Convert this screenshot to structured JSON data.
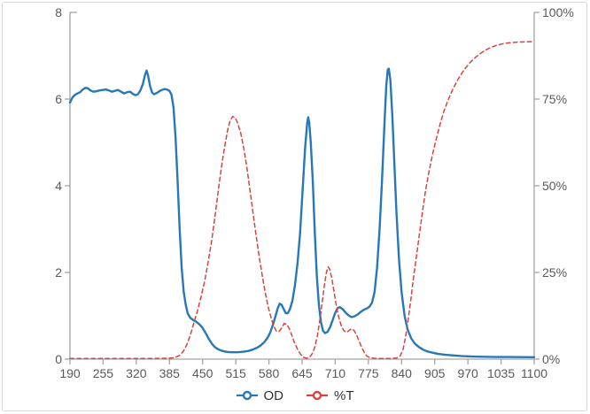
{
  "style": {
    "background": "#ffffff",
    "frame_border": "#d7d7d7",
    "axis_color": "#a3a3a3",
    "tick_label_color": "#595959",
    "legend_text_color": "#303030",
    "od_color": "#2878b8",
    "t_color": "#d8423f"
  },
  "chart_data": {
    "type": "line",
    "grid": false,
    "legend_position": "bottom",
    "x_axis": {
      "min": 190,
      "max": 1100,
      "ticks": [
        190,
        255,
        320,
        385,
        450,
        515,
        580,
        645,
        710,
        775,
        840,
        905,
        970,
        1035,
        1100
      ],
      "tick_labels": [
        "190",
        "255",
        "320",
        "385",
        "450",
        "515",
        "580",
        "645",
        "710",
        "775",
        "840",
        "905",
        "970",
        "1035",
        "1100"
      ]
    },
    "y_axis_left": {
      "label": "OD",
      "min": 0,
      "max": 8,
      "ticks": [
        0,
        2,
        4,
        6,
        8
      ],
      "tick_labels": [
        "0",
        "2",
        "4",
        "6",
        "8"
      ]
    },
    "y_axis_right": {
      "label": "%T",
      "min": 0,
      "max": 100,
      "ticks": [
        0,
        25,
        50,
        75,
        100
      ],
      "tick_labels": [
        "0%",
        "25%",
        "50%",
        "75%",
        "100%"
      ]
    },
    "series": [
      {
        "name": "OD",
        "axis": "left",
        "color": "#2878b8",
        "line_style": "solid",
        "line_width": 2.4,
        "points": [
          [
            190,
            5.92
          ],
          [
            195,
            6.04
          ],
          [
            200,
            6.1
          ],
          [
            205,
            6.13
          ],
          [
            210,
            6.16
          ],
          [
            215,
            6.22
          ],
          [
            220,
            6.26
          ],
          [
            225,
            6.25
          ],
          [
            230,
            6.2
          ],
          [
            236,
            6.17
          ],
          [
            242,
            6.18
          ],
          [
            248,
            6.2
          ],
          [
            254,
            6.21
          ],
          [
            260,
            6.22
          ],
          [
            266,
            6.2
          ],
          [
            272,
            6.17
          ],
          [
            278,
            6.19
          ],
          [
            284,
            6.21
          ],
          [
            290,
            6.17
          ],
          [
            296,
            6.13
          ],
          [
            302,
            6.16
          ],
          [
            308,
            6.17
          ],
          [
            313,
            6.12
          ],
          [
            318,
            6.09
          ],
          [
            323,
            6.11
          ],
          [
            328,
            6.2
          ],
          [
            333,
            6.35
          ],
          [
            337,
            6.55
          ],
          [
            340,
            6.66
          ],
          [
            343,
            6.55
          ],
          [
            347,
            6.3
          ],
          [
            351,
            6.15
          ],
          [
            355,
            6.11
          ],
          [
            360,
            6.14
          ],
          [
            365,
            6.18
          ],
          [
            370,
            6.21
          ],
          [
            375,
            6.23
          ],
          [
            380,
            6.22
          ],
          [
            385,
            6.19
          ],
          [
            389,
            6.1
          ],
          [
            393,
            5.8
          ],
          [
            397,
            5.1
          ],
          [
            401,
            4.1
          ],
          [
            405,
            3.0
          ],
          [
            409,
            2.1
          ],
          [
            413,
            1.55
          ],
          [
            417,
            1.25
          ],
          [
            421,
            1.05
          ],
          [
            426,
            0.95
          ],
          [
            432,
            0.9
          ],
          [
            438,
            0.86
          ],
          [
            444,
            0.8
          ],
          [
            450,
            0.72
          ],
          [
            456,
            0.6
          ],
          [
            462,
            0.47
          ],
          [
            468,
            0.36
          ],
          [
            474,
            0.28
          ],
          [
            480,
            0.23
          ],
          [
            486,
            0.2
          ],
          [
            492,
            0.18
          ],
          [
            500,
            0.165
          ],
          [
            508,
            0.16
          ],
          [
            516,
            0.16
          ],
          [
            524,
            0.165
          ],
          [
            532,
            0.175
          ],
          [
            540,
            0.19
          ],
          [
            548,
            0.22
          ],
          [
            556,
            0.26
          ],
          [
            563,
            0.31
          ],
          [
            570,
            0.38
          ],
          [
            576,
            0.47
          ],
          [
            582,
            0.6
          ],
          [
            588,
            0.8
          ],
          [
            593,
            1.0
          ],
          [
            597,
            1.17
          ],
          [
            601,
            1.28
          ],
          [
            605,
            1.25
          ],
          [
            609,
            1.15
          ],
          [
            613,
            1.06
          ],
          [
            617,
            1.06
          ],
          [
            621,
            1.15
          ],
          [
            626,
            1.35
          ],
          [
            631,
            1.7
          ],
          [
            636,
            2.2
          ],
          [
            641,
            2.9
          ],
          [
            646,
            3.9
          ],
          [
            651,
            4.9
          ],
          [
            655,
            5.45
          ],
          [
            657,
            5.58
          ],
          [
            659,
            5.45
          ],
          [
            662,
            5.0
          ],
          [
            666,
            4.1
          ],
          [
            670,
            2.9
          ],
          [
            674,
            1.9
          ],
          [
            678,
            1.25
          ],
          [
            682,
            0.85
          ],
          [
            686,
            0.66
          ],
          [
            690,
            0.6
          ],
          [
            695,
            0.63
          ],
          [
            700,
            0.74
          ],
          [
            705,
            0.9
          ],
          [
            710,
            1.07
          ],
          [
            715,
            1.18
          ],
          [
            719,
            1.2
          ],
          [
            724,
            1.16
          ],
          [
            730,
            1.08
          ],
          [
            736,
            1.01
          ],
          [
            742,
            0.97
          ],
          [
            748,
            0.99
          ],
          [
            754,
            1.03
          ],
          [
            760,
            1.09
          ],
          [
            766,
            1.14
          ],
          [
            772,
            1.17
          ],
          [
            777,
            1.21
          ],
          [
            782,
            1.3
          ],
          [
            787,
            1.55
          ],
          [
            792,
            2.1
          ],
          [
            797,
            3.0
          ],
          [
            802,
            4.2
          ],
          [
            806,
            5.3
          ],
          [
            810,
            6.3
          ],
          [
            813,
            6.68
          ],
          [
            815,
            6.7
          ],
          [
            818,
            6.45
          ],
          [
            822,
            5.6
          ],
          [
            826,
            4.5
          ],
          [
            830,
            3.4
          ],
          [
            835,
            2.3
          ],
          [
            840,
            1.55
          ],
          [
            846,
            1.0
          ],
          [
            852,
            0.68
          ],
          [
            859,
            0.48
          ],
          [
            866,
            0.36
          ],
          [
            874,
            0.28
          ],
          [
            882,
            0.22
          ],
          [
            890,
            0.18
          ],
          [
            900,
            0.15
          ],
          [
            912,
            0.12
          ],
          [
            926,
            0.1
          ],
          [
            942,
            0.085
          ],
          [
            960,
            0.07
          ],
          [
            980,
            0.06
          ],
          [
            1000,
            0.055
          ],
          [
            1025,
            0.05
          ],
          [
            1050,
            0.05
          ],
          [
            1075,
            0.047
          ],
          [
            1100,
            0.045
          ]
        ]
      },
      {
        "name": "%T",
        "axis": "right",
        "color": "#d8423f",
        "line_style": "dashed",
        "line_width": 1.5,
        "points": [
          [
            190,
            0.2
          ],
          [
            230,
            0.2
          ],
          [
            270,
            0.2
          ],
          [
            310,
            0.2
          ],
          [
            350,
            0.2
          ],
          [
            380,
            0.25
          ],
          [
            395,
            0.4
          ],
          [
            404,
            1.0
          ],
          [
            412,
            2.2
          ],
          [
            419,
            4.2
          ],
          [
            426,
            7
          ],
          [
            433,
            10.5
          ],
          [
            440,
            14
          ],
          [
            447,
            18
          ],
          [
            454,
            22.5
          ],
          [
            461,
            28
          ],
          [
            468,
            34.5
          ],
          [
            475,
            42
          ],
          [
            482,
            50
          ],
          [
            488,
            56.5
          ],
          [
            494,
            62
          ],
          [
            499,
            66
          ],
          [
            504,
            68.8
          ],
          [
            509,
            70
          ],
          [
            514,
            69.6
          ],
          [
            519,
            68
          ],
          [
            525,
            65
          ],
          [
            531,
            60.5
          ],
          [
            537,
            55
          ],
          [
            543,
            48.5
          ],
          [
            549,
            42
          ],
          [
            555,
            35.5
          ],
          [
            561,
            29.5
          ],
          [
            567,
            24
          ],
          [
            573,
            19
          ],
          [
            579,
            14.8
          ],
          [
            585,
            11.5
          ],
          [
            590,
            9.3
          ],
          [
            595,
            8.0
          ],
          [
            600,
            8.0
          ],
          [
            605,
            9.0
          ],
          [
            610,
            10.3
          ],
          [
            615,
            10.0
          ],
          [
            620,
            8.8
          ],
          [
            625,
            6.8
          ],
          [
            630,
            4.8
          ],
          [
            636,
            2.9
          ],
          [
            642,
            1.4
          ],
          [
            648,
            0.5
          ],
          [
            654,
            0.25
          ],
          [
            660,
            0.6
          ],
          [
            665,
            1.6
          ],
          [
            670,
            3.5
          ],
          [
            675,
            6.8
          ],
          [
            680,
            11.5
          ],
          [
            685,
            17
          ],
          [
            689,
            21.5
          ],
          [
            693,
            25.2
          ],
          [
            696,
            26.6
          ],
          [
            699,
            26
          ],
          [
            703,
            23.5
          ],
          [
            707,
            20
          ],
          [
            712,
            15.5
          ],
          [
            717,
            12
          ],
          [
            722,
            9.6
          ],
          [
            727,
            8.2
          ],
          [
            732,
            7.7
          ],
          [
            737,
            8.3
          ],
          [
            742,
            8.8
          ],
          [
            747,
            8.3
          ],
          [
            752,
            6.9
          ],
          [
            757,
            5.1
          ],
          [
            762,
            3.4
          ],
          [
            767,
            1.9
          ],
          [
            772,
            0.9
          ],
          [
            778,
            0.4
          ],
          [
            786,
            0.25
          ],
          [
            796,
            0.2
          ],
          [
            808,
            0.2
          ],
          [
            820,
            0.2
          ],
          [
            830,
            0.3
          ],
          [
            837,
            0.9
          ],
          [
            843,
            2.8
          ],
          [
            848,
            6.5
          ],
          [
            853,
            11.5
          ],
          [
            858,
            17
          ],
          [
            863,
            23
          ],
          [
            869,
            29.5
          ],
          [
            875,
            36
          ],
          [
            881,
            42.5
          ],
          [
            887,
            48.5
          ],
          [
            893,
            53.5
          ],
          [
            900,
            58.5
          ],
          [
            907,
            63
          ],
          [
            915,
            67.5
          ],
          [
            923,
            71.5
          ],
          [
            932,
            75
          ],
          [
            941,
            78
          ],
          [
            951,
            80.8
          ],
          [
            962,
            83.3
          ],
          [
            974,
            85.5
          ],
          [
            986,
            87.2
          ],
          [
            999,
            88.6
          ],
          [
            1012,
            89.7
          ],
          [
            1026,
            90.5
          ],
          [
            1040,
            91
          ],
          [
            1055,
            91.3
          ],
          [
            1070,
            91.45
          ],
          [
            1085,
            91.5
          ],
          [
            1100,
            91.55
          ]
        ]
      }
    ]
  },
  "legend": {
    "items": [
      {
        "label": "OD"
      },
      {
        "label": "%T"
      }
    ]
  }
}
